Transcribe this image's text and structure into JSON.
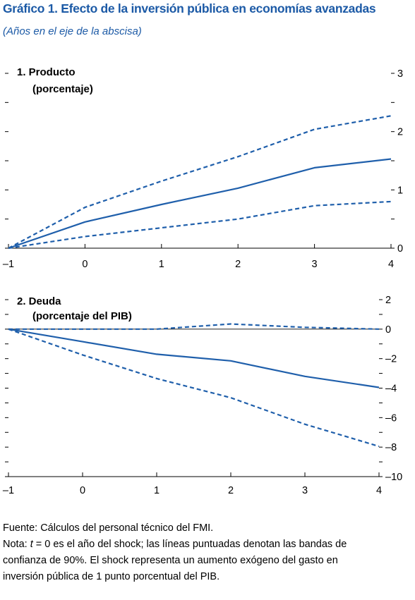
{
  "header": {
    "title": "Gráfico 1. Efecto de la inversión pública en economías avanzadas",
    "subtitle": "(Años en el eje de la abscisa)"
  },
  "colors": {
    "accent": "#1c5aa6",
    "series": "#1f5fab",
    "axis": "#000000"
  },
  "chart_data": [
    {
      "type": "line",
      "panel_title_line1": "1. Producto",
      "panel_title_line2": "(porcentaje)",
      "x": [
        -1,
        0,
        1,
        2,
        3,
        4
      ],
      "x_tick_labels": [
        "–1",
        "0",
        "1",
        "2",
        "3",
        "4"
      ],
      "xlim": [
        -1,
        4
      ],
      "ylim": [
        0,
        3
      ],
      "y_tick_labels": [
        "0",
        "1",
        "2",
        "3"
      ],
      "y_tick_values": [
        0,
        1,
        2,
        3
      ],
      "y_minor_step": 0.5,
      "zero_line": false,
      "grid": false,
      "series": [
        {
          "style": "solid",
          "values": [
            0,
            0.45,
            0.75,
            1.03,
            1.38,
            1.53
          ]
        },
        {
          "style": "dashed",
          "values": [
            0,
            0.7,
            1.15,
            1.57,
            2.04,
            2.27
          ]
        },
        {
          "style": "dashed",
          "values": [
            0,
            0.2,
            0.35,
            0.5,
            0.73,
            0.8
          ]
        }
      ]
    },
    {
      "type": "line",
      "panel_title_line1": "2. Deuda",
      "panel_title_line2": "(porcentaje del PIB)",
      "x": [
        -1,
        0,
        1,
        2,
        3,
        4
      ],
      "x_tick_labels": [
        "–1",
        "0",
        "1",
        "2",
        "3",
        "4"
      ],
      "xlim": [
        -1,
        4
      ],
      "ylim": [
        -10,
        2
      ],
      "y_tick_labels": [
        "2",
        "0",
        "–2",
        "–4",
        "–6",
        "–8",
        "–10"
      ],
      "y_tick_values": [
        2,
        0,
        -2,
        -4,
        -6,
        -8,
        -10
      ],
      "y_minor_step": 1,
      "zero_line": true,
      "grid": false,
      "series": [
        {
          "style": "solid",
          "values": [
            0,
            -0.85,
            -1.7,
            -2.15,
            -3.2,
            -3.95
          ]
        },
        {
          "style": "dashed",
          "values": [
            0,
            0.0,
            0.0,
            0.35,
            0.12,
            0.0
          ]
        },
        {
          "style": "dashed",
          "values": [
            0,
            -1.75,
            -3.35,
            -4.65,
            -6.45,
            -7.95
          ]
        }
      ]
    }
  ],
  "notes": {
    "source": "Fuente: Cálculos del personal técnico del FMI.",
    "note_prefix": "Nota: ",
    "note_var": "t",
    "note_line1_rest": " = 0 es el año del shock; las líneas puntuadas denotan las bandas de",
    "note_line2": "confianza de 90%. El shock representa un aumento exógeno del gasto en",
    "note_line3": "inversión pública de 1 punto porcentual del PIB."
  }
}
